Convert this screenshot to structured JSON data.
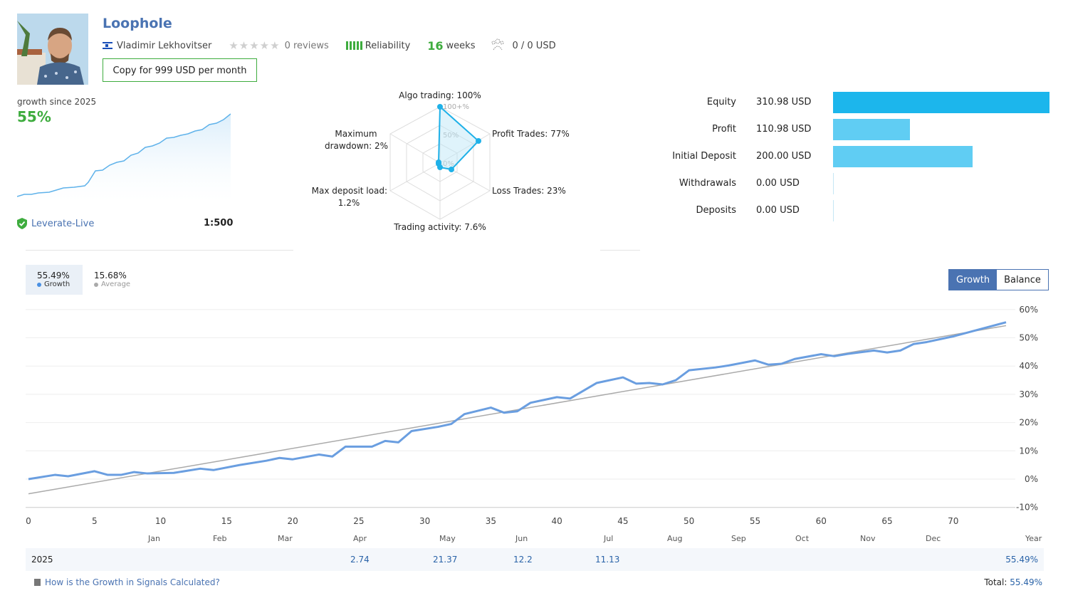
{
  "header": {
    "signal_name": "Loophole",
    "author": "Vladimir Lekhovitser",
    "reviews": "0 reviews",
    "reliability_label": "Reliability",
    "weeks_value": "16",
    "weeks_unit": "weeks",
    "subscribers": "0 / 0 USD",
    "copy_button": "Copy for 999 USD per month",
    "icons": [
      "israel-flag-icon",
      "star-icon",
      "reliability-bars-icon",
      "subscribers-icon"
    ]
  },
  "summary": {
    "growth_label": "growth since 2025",
    "growth_value": "55%",
    "broker": "Leverate-Live",
    "leverage": "1:500"
  },
  "radar": {
    "labels": {
      "algo": "Algo trading: 100%",
      "profit": "Profit Trades: 77%",
      "loss": "Loss Trades: 23%",
      "activity": "Trading activity: 7.6%",
      "load_1": "Max deposit load:",
      "load_2": "1.2%",
      "dd_1": "Maximum",
      "dd_2": "drawdown: 2%"
    },
    "rings": [
      "100+%",
      "50%",
      "0%"
    ],
    "values": [
      100,
      77,
      23,
      7.6,
      1.2,
      2
    ]
  },
  "stats": [
    {
      "name": "Equity",
      "value": "310.98 USD",
      "amount": 310.98
    },
    {
      "name": "Profit",
      "value": "110.98 USD",
      "amount": 110.98
    },
    {
      "name": "Initial Deposit",
      "value": "200.00 USD",
      "amount": 200.0
    },
    {
      "name": "Withdrawals",
      "value": "0.00 USD",
      "amount": 0
    },
    {
      "name": "Deposits",
      "value": "0.00 USD",
      "amount": 0
    }
  ],
  "legend": {
    "growth_value": "55.49%",
    "growth_label": "Growth",
    "average_value": "15.68%",
    "average_label": "Average"
  },
  "toggle": {
    "growth": "Growth",
    "balance": "Balance"
  },
  "chart_data": {
    "type": "line",
    "x_ticks": [
      0,
      5,
      10,
      15,
      20,
      25,
      30,
      35,
      40,
      45,
      50,
      55,
      60,
      65,
      70
    ],
    "y_ticks": [
      "60%",
      "50%",
      "40%",
      "30%",
      "20%",
      "10%",
      "0%",
      "-10%"
    ],
    "ylim": [
      -10,
      60
    ],
    "xlim": [
      0,
      74
    ],
    "series": [
      {
        "name": "Growth",
        "color": "#6a9ee0",
        "points": [
          [
            0,
            0
          ],
          [
            2,
            1.5
          ],
          [
            3,
            1
          ],
          [
            5,
            2.8
          ],
          [
            6,
            1.5
          ],
          [
            7,
            1.5
          ],
          [
            8,
            2.5
          ],
          [
            9,
            2
          ],
          [
            11,
            2.2
          ],
          [
            13,
            3.7
          ],
          [
            14,
            3.2
          ],
          [
            16,
            5
          ],
          [
            18,
            6.5
          ],
          [
            19,
            7.5
          ],
          [
            20,
            7
          ],
          [
            22,
            8.7
          ],
          [
            23,
            8
          ],
          [
            24,
            11.5
          ],
          [
            26,
            11.5
          ],
          [
            27,
            13.5
          ],
          [
            28,
            13
          ],
          [
            29,
            17
          ],
          [
            31,
            18.5
          ],
          [
            32,
            19.5
          ],
          [
            33,
            23
          ],
          [
            35,
            25.3
          ],
          [
            36,
            23.5
          ],
          [
            37,
            24
          ],
          [
            38,
            27
          ],
          [
            40,
            29
          ],
          [
            41,
            28.5
          ],
          [
            43,
            34
          ],
          [
            45,
            36
          ],
          [
            46,
            33.8
          ],
          [
            47,
            34
          ],
          [
            48,
            33.5
          ],
          [
            49,
            35
          ],
          [
            50,
            38.5
          ],
          [
            52,
            39.5
          ],
          [
            53,
            40.2
          ],
          [
            55,
            42
          ],
          [
            56,
            40.5
          ],
          [
            57,
            40.8
          ],
          [
            58,
            42.5
          ],
          [
            60,
            44.2
          ],
          [
            61,
            43.5
          ],
          [
            62,
            44.3
          ],
          [
            64,
            45.5
          ],
          [
            65,
            44.8
          ],
          [
            66,
            45.5
          ],
          [
            67,
            47.8
          ],
          [
            68,
            48.5
          ],
          [
            70,
            50.5
          ],
          [
            72,
            53
          ],
          [
            74,
            55.5
          ]
        ]
      },
      {
        "name": "Average",
        "color": "#aaaaaa",
        "points": [
          [
            0,
            -5.2
          ],
          [
            74,
            54.3
          ]
        ]
      }
    ]
  },
  "months": [
    "Jan",
    "Feb",
    "Mar",
    "Apr",
    "May",
    "Jun",
    "Jul",
    "Aug",
    "Sep",
    "Oct",
    "Nov",
    "Dec",
    "Year"
  ],
  "year_row": {
    "year": "2025",
    "apr": "2.74",
    "may": "21.37",
    "jun": "12.2",
    "jul": "11.13",
    "total": "55.49%"
  },
  "footer": {
    "link": "How is the Growth in Signals Calculated?",
    "total_label": "Total:",
    "total_value": "55.49%"
  }
}
